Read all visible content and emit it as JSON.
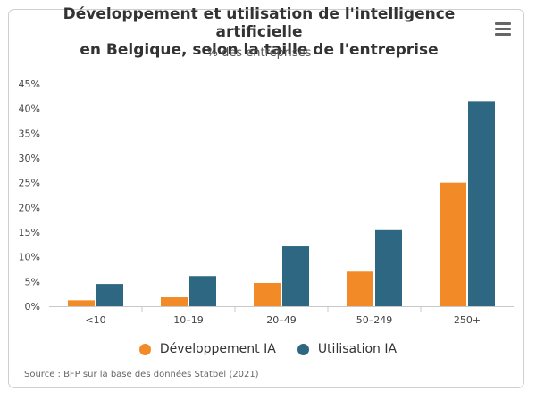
{
  "chart_data": {
    "type": "bar",
    "title_line1": "Développement et utilisation de l'intelligence artificielle",
    "title_line2": "en Belgique, selon la taille de l'entreprise",
    "subtitle": "% des entreprises",
    "categories": [
      "<10",
      "10–19",
      "20–49",
      "50–249",
      "250+"
    ],
    "series": [
      {
        "name": "Développement IA",
        "color": "#f28a28",
        "values": [
          1.2,
          1.8,
          4.7,
          7.0,
          25.0
        ]
      },
      {
        "name": "Utilisation IA",
        "color": "#2d6781",
        "values": [
          4.5,
          6.1,
          12.1,
          15.4,
          41.5
        ]
      }
    ],
    "y_ticks": [
      "0%",
      "5%",
      "10%",
      "15%",
      "20%",
      "25%",
      "30%",
      "35%",
      "40%",
      "45%"
    ],
    "ylim": [
      0,
      45
    ],
    "xlabel": "",
    "ylabel": "",
    "legend_position": "bottom-center",
    "grid": false,
    "source": "Source : BFP sur la base des données Statbel (2021)"
  }
}
